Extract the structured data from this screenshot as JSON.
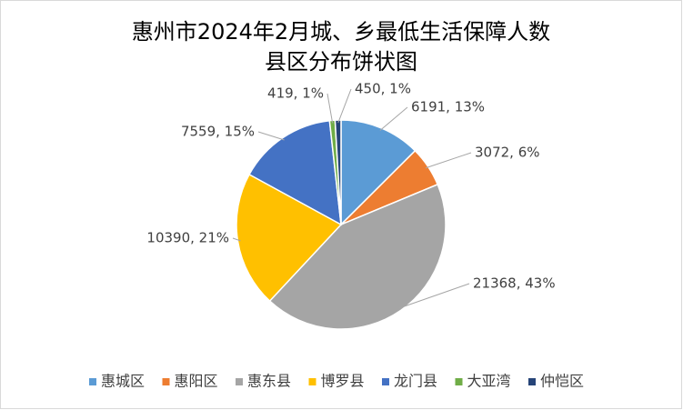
{
  "chart_data": {
    "type": "pie",
    "title": [
      "惠州市2024年2月城、乡最低生活保障人数",
      "县区分布饼状图"
    ],
    "categories": [
      "惠城区",
      "惠阳区",
      "惠东县",
      "博罗县",
      "龙门县",
      "大亚湾",
      "仲恺区"
    ],
    "values": [
      6191,
      3072,
      21368,
      10390,
      7559,
      419,
      450
    ],
    "value_labels": [
      "6191, 13%",
      "3072, 6%",
      "21368, 43%",
      "10390, 21%",
      "7559, 15%",
      "419, 1%",
      "450, 1%"
    ],
    "colors": [
      "#5b9bd5",
      "#ed7d31",
      "#a5a5a5",
      "#ffc000",
      "#4472c4",
      "#70ad47",
      "#264478"
    ],
    "legend": "bottom"
  }
}
